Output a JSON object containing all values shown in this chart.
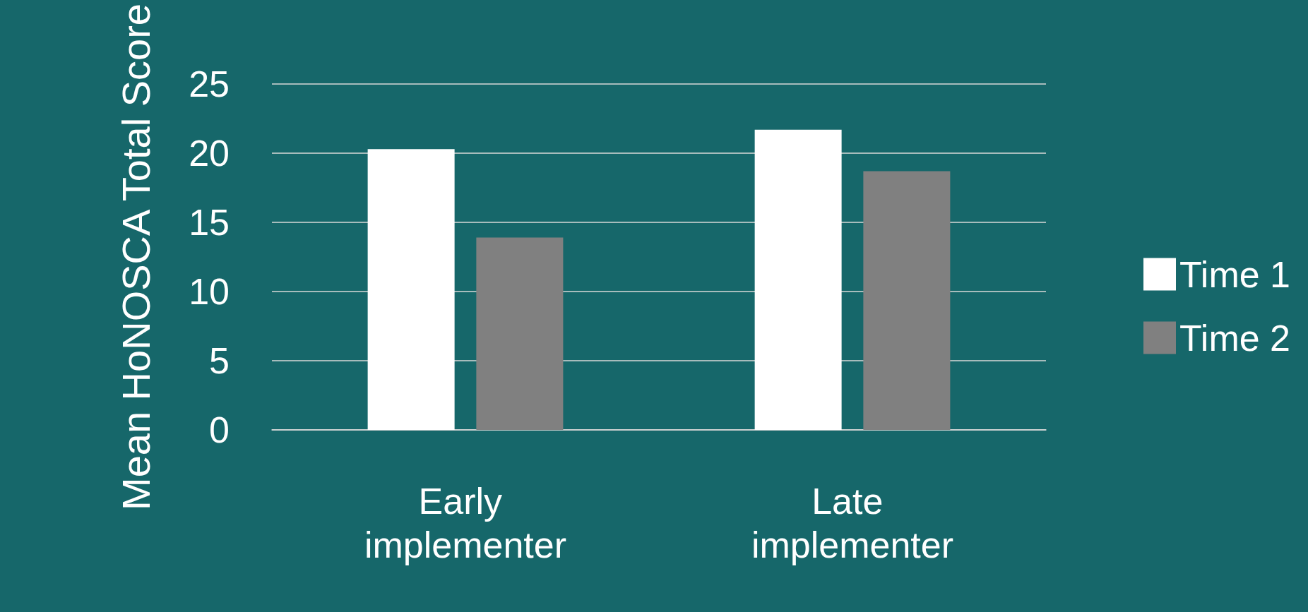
{
  "chart_data": {
    "type": "bar",
    "ylabel": "Mean HoNOSCA Total Score",
    "categories": [
      "Early implementer",
      "Late implementer"
    ],
    "series": [
      {
        "name": "Time 1",
        "color": "#ffffff",
        "values": [
          20.3,
          21.7
        ]
      },
      {
        "name": "Time 2",
        "color": "#808080",
        "values": [
          13.9,
          18.7
        ]
      }
    ],
    "ylim": [
      0,
      25
    ],
    "yticks": [
      0,
      5,
      10,
      15,
      20,
      25
    ],
    "grid": "y",
    "legend": "right"
  }
}
